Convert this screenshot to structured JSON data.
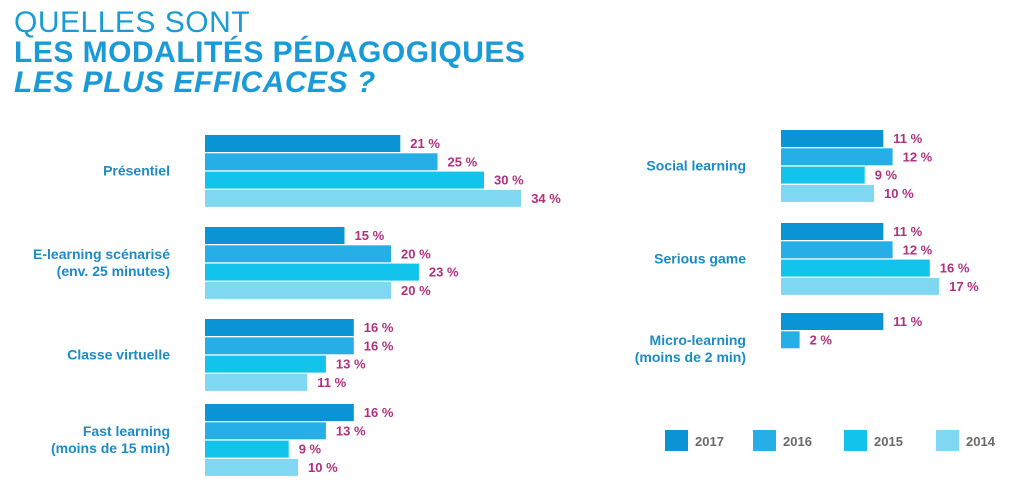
{
  "title": {
    "line1": "QUELLES SONT",
    "line2": "LES MODALITÉS PÉDAGOGIQUES",
    "line3": "LES PLUS EFFICACES ?"
  },
  "colors": {
    "2017": "#0a94d6",
    "2016": "#26aee6",
    "2015": "#12c3ec",
    "2014": "#7fd7f2",
    "label": "#1b8bc6",
    "value": "#b0307f"
  },
  "chart_data": {
    "type": "bar",
    "orientation": "horizontal",
    "value_suffix": " %",
    "series_names": [
      "2017",
      "2016",
      "2015",
      "2014"
    ],
    "groups": [
      {
        "label": [
          "Présentiel"
        ],
        "values": [
          21,
          25,
          30,
          34
        ]
      },
      {
        "label": [
          "E-learning scénarisé",
          "(env. 25 minutes)"
        ],
        "values": [
          15,
          20,
          23,
          20
        ]
      },
      {
        "label": [
          "Classe virtuelle"
        ],
        "values": [
          16,
          16,
          13,
          11
        ]
      },
      {
        "label": [
          "Fast learning",
          "(moins de 15 min)"
        ],
        "values": [
          16,
          13,
          9,
          10
        ]
      },
      {
        "label": [
          "Social learning"
        ],
        "values": [
          11,
          12,
          9,
          10
        ]
      },
      {
        "label": [
          "Serious game"
        ],
        "values": [
          11,
          12,
          16,
          17
        ]
      },
      {
        "label": [
          "Micro-learning",
          "(moins de 2 min)"
        ],
        "values": [
          11,
          2
        ]
      }
    ],
    "legend": [
      "2017",
      "2016",
      "2015",
      "2014"
    ]
  }
}
